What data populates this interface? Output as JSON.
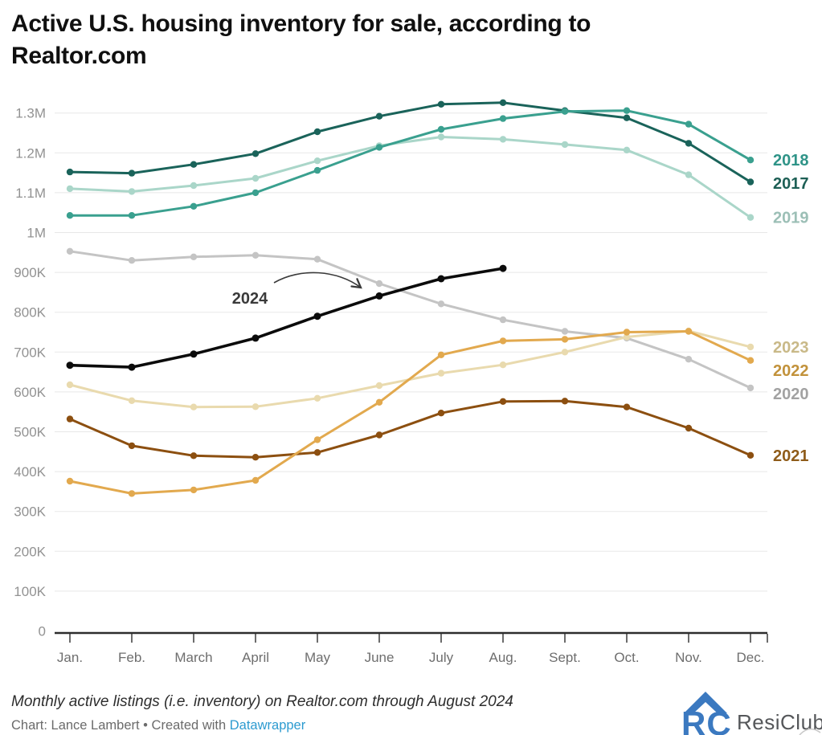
{
  "title": "Active U.S. housing inventory for sale, according to Realtor.com",
  "chart_data": {
    "type": "line",
    "title": "Active U.S. housing inventory for sale, according to Realtor.com",
    "x_labels": [
      "Jan.",
      "Feb.",
      "March",
      "April",
      "May",
      "June",
      "July",
      "Aug.",
      "Sept.",
      "Oct.",
      "Nov.",
      "Dec."
    ],
    "y_ticks": [
      {
        "label": "1.3M",
        "value": 1300000
      },
      {
        "label": "1.2M",
        "value": 1200000
      },
      {
        "label": "1.1M",
        "value": 1100000
      },
      {
        "label": "1M",
        "value": 1000000
      },
      {
        "label": "900K",
        "value": 900000
      },
      {
        "label": "800K",
        "value": 800000
      },
      {
        "label": "700K",
        "value": 700000
      },
      {
        "label": "600K",
        "value": 600000
      },
      {
        "label": "500K",
        "value": 500000
      },
      {
        "label": "400K",
        "value": 400000
      },
      {
        "label": "300K",
        "value": 300000
      },
      {
        "label": "200K",
        "value": 200000
      },
      {
        "label": "100K",
        "value": 100000
      },
      {
        "label": "0",
        "value": 0
      }
    ],
    "ylim": [
      0,
      1360000
    ],
    "grid": "horizontal",
    "legend_position": "right-end-labels",
    "series": [
      {
        "name": "2017",
        "color": "#1a635a",
        "label_color": "#1d5f55",
        "values": [
          1152000,
          1149000,
          1171000,
          1198000,
          1253000,
          1292000,
          1322000,
          1326000,
          1306000,
          1288000,
          1224000,
          1127000
        ]
      },
      {
        "name": "2018",
        "color": "#3aa08f",
        "label_color": "#2f9488",
        "values": [
          1043000,
          1043000,
          1066000,
          1100000,
          1156000,
          1214000,
          1259000,
          1286000,
          1304000,
          1306000,
          1272000,
          1182000
        ]
      },
      {
        "name": "2019",
        "color": "#aad6c9",
        "label_color": "#9cbfb6",
        "values": [
          1110000,
          1103000,
          1118000,
          1136000,
          1180000,
          1218000,
          1240000,
          1234000,
          1221000,
          1207000,
          1145000,
          1038000
        ]
      },
      {
        "name": "2020",
        "color": "#c4c4c4",
        "label_color": "#a2a2a2",
        "values": [
          953000,
          930000,
          939000,
          943000,
          933000,
          872000,
          821000,
          781000,
          752000,
          735000,
          682000,
          610000
        ]
      },
      {
        "name": "2021",
        "color": "#8c4f10",
        "label_color": "#8f5c1a",
        "values": [
          532000,
          465000,
          440000,
          436000,
          448000,
          492000,
          547000,
          576000,
          577000,
          562000,
          509000,
          441000
        ]
      },
      {
        "name": "2022",
        "color": "#e2a94e",
        "label_color": "#c2923b",
        "values": [
          376000,
          345000,
          354000,
          378000,
          480000,
          574000,
          693000,
          728000,
          732000,
          750000,
          752000,
          679000
        ]
      },
      {
        "name": "2023",
        "color": "#e9daae",
        "label_color": "#c9b988",
        "values": [
          618000,
          578000,
          562000,
          563000,
          584000,
          616000,
          647000,
          668000,
          700000,
          738000,
          753000,
          713000
        ]
      },
      {
        "name": "2024",
        "color": "#0b0b0b",
        "label_color": "#0b0b0b",
        "values": [
          667000,
          662000,
          695000,
          735000,
          790000,
          841000,
          884000,
          910000
        ]
      }
    ],
    "annotation": {
      "label": "2024",
      "points_to": "2024 line near June"
    }
  },
  "footer": {
    "note": "Monthly active listings (i.e. inventory) on Realtor.com through August 2024",
    "credit_prefix": "Chart: Lance Lambert • Created with ",
    "credit_link": "Datawrapper",
    "link_color": "#2d9bd0"
  },
  "logo": {
    "monogram": "RC",
    "text": "ResiClub",
    "color": "#3b79c0"
  }
}
